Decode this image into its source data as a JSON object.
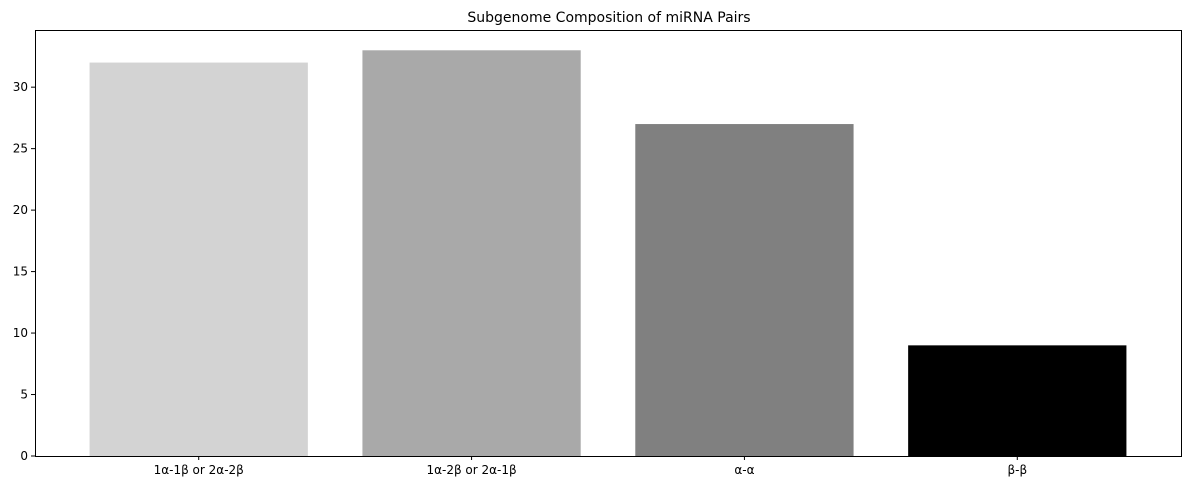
{
  "chart_data": {
    "type": "bar",
    "title": "Subgenome Composition of miRNA Pairs",
    "xlabel": "",
    "ylabel": "",
    "categories": [
      "1α-1β or 2α-2β",
      "1α-2β or 2α-1β",
      "α-α",
      "β-β"
    ],
    "values": [
      32,
      33,
      27,
      9
    ],
    "colors": [
      "#d3d3d3",
      "#a9a9a9",
      "#808080",
      "#000000"
    ],
    "ylim": [
      0,
      34.65
    ],
    "yticks": [
      0,
      5,
      10,
      15,
      20,
      25,
      30
    ],
    "grid": false,
    "legend": "none"
  }
}
